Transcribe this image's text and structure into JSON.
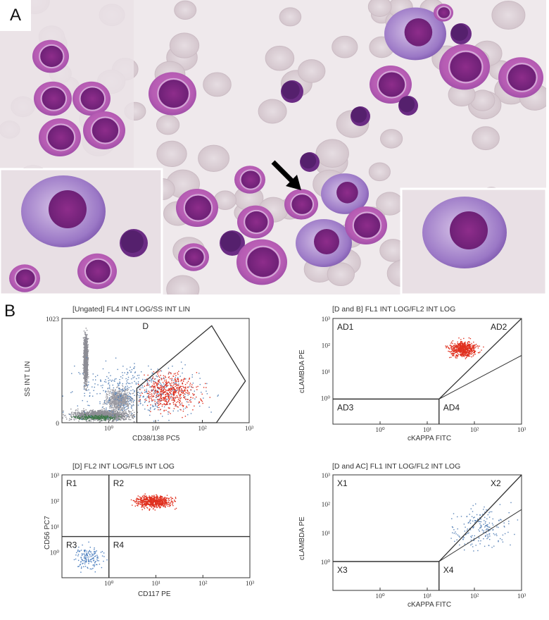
{
  "panel_a": {
    "label": "A",
    "cells": [
      {
        "cx": 72,
        "cy": 80,
        "r": 26,
        "kind": "blast"
      },
      {
        "cx": 130,
        "cy": 140,
        "r": 27,
        "kind": "blast"
      },
      {
        "cx": 75,
        "cy": 140,
        "r": 27,
        "kind": "blast"
      },
      {
        "cx": 85,
        "cy": 195,
        "r": 30,
        "kind": "blast"
      },
      {
        "cx": 148,
        "cy": 185,
        "r": 30,
        "kind": "blast"
      },
      {
        "cx": 245,
        "cy": 133,
        "r": 34,
        "kind": "blast"
      },
      {
        "cx": 90,
        "cy": 300,
        "r": 60,
        "kind": "plasma"
      },
      {
        "cx": 190,
        "cy": 345,
        "r": 20,
        "kind": "lymph"
      },
      {
        "cx": 138,
        "cy": 385,
        "r": 28,
        "kind": "blast"
      },
      {
        "cx": 35,
        "cy": 395,
        "r": 22,
        "kind": "blast"
      },
      {
        "cx": 415,
        "cy": 130,
        "r": 16,
        "kind": "lymph"
      },
      {
        "cx": 590,
        "cy": 48,
        "r": 44,
        "kind": "plasma"
      },
      {
        "cx": 655,
        "cy": 48,
        "r": 15,
        "kind": "lymph"
      },
      {
        "cx": 660,
        "cy": 95,
        "r": 36,
        "kind": "blast"
      },
      {
        "cx": 740,
        "cy": 110,
        "r": 32,
        "kind": "blast"
      },
      {
        "cx": 555,
        "cy": 120,
        "r": 30,
        "kind": "blast"
      },
      {
        "cx": 580,
        "cy": 150,
        "r": 14,
        "kind": "lymph"
      },
      {
        "cx": 512,
        "cy": 165,
        "r": 14,
        "kind": "lymph"
      },
      {
        "cx": 355,
        "cy": 255,
        "r": 22,
        "kind": "blast"
      },
      {
        "cx": 280,
        "cy": 295,
        "r": 30,
        "kind": "blast"
      },
      {
        "cx": 363,
        "cy": 315,
        "r": 26,
        "kind": "blast"
      },
      {
        "cx": 275,
        "cy": 365,
        "r": 22,
        "kind": "blast"
      },
      {
        "cx": 330,
        "cy": 345,
        "r": 18,
        "kind": "lymph"
      },
      {
        "cx": 372,
        "cy": 372,
        "r": 36,
        "kind": "blast"
      },
      {
        "cx": 428,
        "cy": 290,
        "r": 24,
        "kind": "blast"
      },
      {
        "cx": 490,
        "cy": 275,
        "r": 34,
        "kind": "plasma"
      },
      {
        "cx": 460,
        "cy": 345,
        "r": 40,
        "kind": "plasma"
      },
      {
        "cx": 520,
        "cy": 320,
        "r": 30,
        "kind": "blast"
      },
      {
        "cx": 660,
        "cy": 330,
        "r": 60,
        "kind": "plasma"
      },
      {
        "cx": 440,
        "cy": 230,
        "r": 14,
        "kind": "lymph"
      },
      {
        "cx": 630,
        "cy": 18,
        "r": 14,
        "kind": "blast"
      }
    ],
    "arrow": {
      "x1": 388,
      "y1": 230,
      "x2": 428,
      "y2": 270
    }
  },
  "panel_b": {
    "label": "B",
    "plots": [
      {
        "id": "plot-1",
        "title": "[Ungated] FL4 INT LOG/SS INT LIN",
        "xlabel": "CD38/138 PC5",
        "ylabel": "SS INT LIN",
        "y_ticks": [
          "1023",
          "0"
        ],
        "x_ticks": [
          "10⁰",
          "10¹",
          "10²",
          "10³"
        ],
        "regions": [
          {
            "label": "D"
          }
        ],
        "series": [
          {
            "name": "gray-cluster-tall",
            "color": "#8d8d95",
            "x": [
              -0.55,
              -0.45
            ],
            "y": [
              0.35,
              0.85
            ],
            "n": 1400
          },
          {
            "name": "gray-cluster-low",
            "color": "#8d8d95",
            "x": [
              -0.9,
              0.55
            ],
            "y": [
              0.02,
              0.13
            ],
            "n": 1400
          },
          {
            "name": "gray-cluster-mid",
            "color": "#9a9aa2",
            "x": [
              -0.1,
              0.5
            ],
            "y": [
              0.1,
              0.35
            ],
            "n": 700
          },
          {
            "name": "green",
            "color": "#3e7a4a",
            "x": [
              -0.8,
              0.3
            ],
            "y": [
              0.03,
              0.08
            ],
            "n": 220
          },
          {
            "name": "blue",
            "color": "#5a84b8",
            "x": [
              -0.9,
              2.2
            ],
            "y": [
              0.02,
              0.6
            ],
            "n": 500
          },
          {
            "name": "red",
            "color": "#e0301e",
            "x": [
              0.6,
              2.0
            ],
            "y": [
              0.1,
              0.5
            ],
            "n": 520
          }
        ]
      },
      {
        "id": "plot-2",
        "title": "[D and B] FL1 INT LOG/FL2 INT LOG",
        "xlabel": "cKAPPA FITC",
        "ylabel": "cLAMBDA PE",
        "y_ticks": [
          "10³",
          "10²",
          "10¹",
          "10⁰"
        ],
        "x_ticks": [
          "10⁰",
          "10¹",
          "10²",
          "10³"
        ],
        "regions": [
          {
            "label": "AD1"
          },
          {
            "label": "AD2"
          },
          {
            "label": "AD3"
          },
          {
            "label": "AD4"
          }
        ],
        "series": [
          {
            "name": "red",
            "color": "#e0301e",
            "x": [
              1.4,
              2.1
            ],
            "y": [
              1.5,
              2.2
            ],
            "n": 600
          }
        ]
      },
      {
        "id": "plot-3",
        "title": "[D] FL2 INT LOG/FL5 INT LOG",
        "xlabel": "CD117 PE",
        "ylabel": "CD56 PC7",
        "y_ticks": [
          "10³",
          "10²",
          "10¹",
          "10⁰"
        ],
        "x_ticks": [
          "10⁰",
          "10¹",
          "10²",
          "10³"
        ],
        "regions": [
          {
            "label": "R1"
          },
          {
            "label": "R2"
          },
          {
            "label": "R3"
          },
          {
            "label": "R4"
          }
        ],
        "series": [
          {
            "name": "red",
            "color": "#e0301e",
            "x": [
              0.5,
              1.4
            ],
            "y": [
              1.7,
              2.25
            ],
            "n": 650
          },
          {
            "name": "blue",
            "color": "#4d7fbf",
            "x": [
              -0.8,
              -0.1
            ],
            "y": [
              -0.8,
              0.3
            ],
            "n": 150
          }
        ]
      },
      {
        "id": "plot-4",
        "title": "[D and AC] FL1 INT LOG/FL2 INT LOG",
        "xlabel": "cKAPPA FITC",
        "ylabel": "cLAMBDA PE",
        "y_ticks": [
          "10³",
          "10²",
          "10¹",
          "10⁰"
        ],
        "x_ticks": [
          "10⁰",
          "10¹",
          "10²",
          "10³"
        ],
        "regions": [
          {
            "label": "X1"
          },
          {
            "label": "X2"
          },
          {
            "label": "X3"
          },
          {
            "label": "X4"
          }
        ],
        "series": [
          {
            "name": "blue",
            "color": "#5a84b8",
            "x": [
              1.3,
              2.9
            ],
            "y": [
              0.4,
              2.0
            ],
            "n": 200
          }
        ]
      }
    ]
  }
}
